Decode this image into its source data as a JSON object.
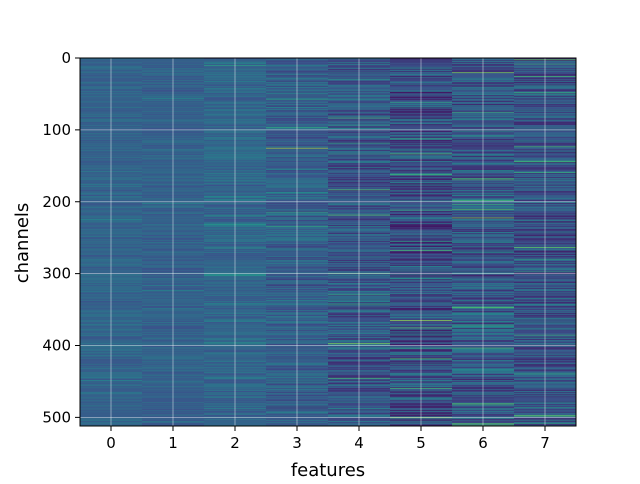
{
  "chart_data": {
    "type": "heatmap",
    "title": "",
    "xlabel": "features",
    "ylabel": "channels",
    "x_categories": [
      0,
      1,
      2,
      3,
      4,
      5,
      6,
      7
    ],
    "y_range": [
      0,
      512
    ],
    "x_ticks": [
      "0",
      "1",
      "2",
      "3",
      "4",
      "5",
      "6",
      "7"
    ],
    "y_ticks": [
      "0",
      "100",
      "200",
      "300",
      "400",
      "500"
    ],
    "grid": true,
    "colormap": "viridis",
    "colormap_colors": [
      "#440154",
      "#3b528b",
      "#21918c",
      "#5ec962",
      "#fde725"
    ],
    "column_typical_values": [
      0.32,
      0.31,
      0.33,
      0.3,
      0.27,
      0.24,
      0.28,
      0.26
    ],
    "column_spread": [
      0.06,
      0.06,
      0.08,
      0.11,
      0.14,
      0.18,
      0.17,
      0.16
    ],
    "highlight_rows": [
      {
        "feature": 2,
        "channel": 10,
        "value": 0.55
      },
      {
        "feature": 3,
        "channel": 125,
        "value": 0.85
      },
      {
        "feature": 4,
        "channel": 83,
        "value": 0.65
      },
      {
        "feature": 4,
        "channel": 183,
        "value": 0.7
      },
      {
        "feature": 4,
        "channel": 218,
        "value": 0.7
      },
      {
        "feature": 4,
        "channel": 397,
        "value": 0.8
      },
      {
        "feature": 4,
        "channel": 445,
        "value": 0.65
      },
      {
        "feature": 5,
        "channel": 365,
        "value": 0.85
      },
      {
        "feature": 5,
        "channel": 375,
        "value": 0.7
      },
      {
        "feature": 5,
        "channel": 500,
        "value": 0.75
      },
      {
        "feature": 6,
        "channel": 20,
        "value": 0.8
      },
      {
        "feature": 6,
        "channel": 75,
        "value": 0.6
      },
      {
        "feature": 6,
        "channel": 210,
        "value": 0.7
      },
      {
        "feature": 6,
        "channel": 222,
        "value": 0.8
      },
      {
        "feature": 6,
        "channel": 480,
        "value": 0.65
      },
      {
        "feature": 7,
        "channel": 2,
        "value": 0.75
      },
      {
        "feature": 7,
        "channel": 8,
        "value": 0.6
      },
      {
        "feature": 7,
        "channel": 263,
        "value": 0.75
      },
      {
        "feature": 7,
        "channel": 497,
        "value": 0.7
      }
    ]
  }
}
